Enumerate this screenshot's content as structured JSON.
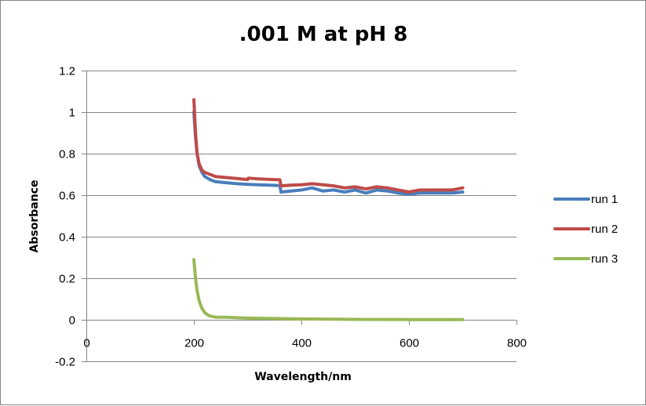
{
  "chart_data": {
    "type": "line",
    "title": ".001 M at pH 8",
    "xlabel": "Wavelength/nm",
    "ylabel": "Absorbance",
    "xlim": [
      0,
      800
    ],
    "ylim": [
      -0.2,
      1.2
    ],
    "xticks": [
      0,
      200,
      400,
      600,
      800
    ],
    "yticks": [
      -0.2,
      0,
      0.2,
      0.4,
      0.6,
      0.8,
      1,
      1.2
    ],
    "xtick_labels": [
      "0",
      "200",
      "400",
      "600",
      "800"
    ],
    "ytick_labels": [
      "-0.2",
      "0",
      "0.2",
      "0.4",
      "0.6",
      "0.8",
      "1",
      "1.2"
    ],
    "grid": "horizontal",
    "legend_position": "right",
    "series": [
      {
        "name": "run 1",
        "color": "#4a7ebb",
        "x": [
          200,
          203,
          206,
          210,
          215,
          220,
          230,
          240,
          260,
          280,
          300,
          320,
          340,
          360,
          362,
          380,
          400,
          420,
          440,
          460,
          480,
          500,
          520,
          540,
          560,
          580,
          600,
          620,
          640,
          660,
          680,
          700
        ],
        "y": [
          1.0,
          0.88,
          0.8,
          0.74,
          0.71,
          0.69,
          0.675,
          0.665,
          0.66,
          0.655,
          0.652,
          0.65,
          0.648,
          0.646,
          0.615,
          0.62,
          0.625,
          0.635,
          0.62,
          0.625,
          0.615,
          0.625,
          0.61,
          0.625,
          0.62,
          0.61,
          0.605,
          0.61,
          0.61,
          0.61,
          0.61,
          0.615
        ]
      },
      {
        "name": "run 2",
        "color": "#be4b48",
        "x": [
          200,
          203,
          206,
          210,
          215,
          220,
          230,
          240,
          260,
          280,
          300,
          301,
          320,
          340,
          360,
          362,
          380,
          400,
          420,
          440,
          460,
          480,
          500,
          520,
          540,
          560,
          580,
          600,
          620,
          640,
          660,
          680,
          700
        ],
        "y": [
          1.06,
          0.9,
          0.8,
          0.75,
          0.72,
          0.71,
          0.7,
          0.69,
          0.685,
          0.68,
          0.675,
          0.682,
          0.678,
          0.676,
          0.674,
          0.645,
          0.648,
          0.65,
          0.655,
          0.65,
          0.645,
          0.635,
          0.64,
          0.63,
          0.64,
          0.635,
          0.625,
          0.615,
          0.625,
          0.625,
          0.625,
          0.625,
          0.635
        ]
      },
      {
        "name": "run 3",
        "color": "#98b954",
        "x": [
          200,
          203,
          206,
          210,
          215,
          220,
          225,
          230,
          240,
          250,
          260,
          280,
          300,
          350,
          400,
          500,
          600,
          700
        ],
        "y": [
          0.29,
          0.2,
          0.14,
          0.09,
          0.055,
          0.035,
          0.025,
          0.018,
          0.013,
          0.012,
          0.012,
          0.01,
          0.008,
          0.006,
          0.004,
          0.002,
          0.001,
          0.001
        ]
      }
    ]
  }
}
